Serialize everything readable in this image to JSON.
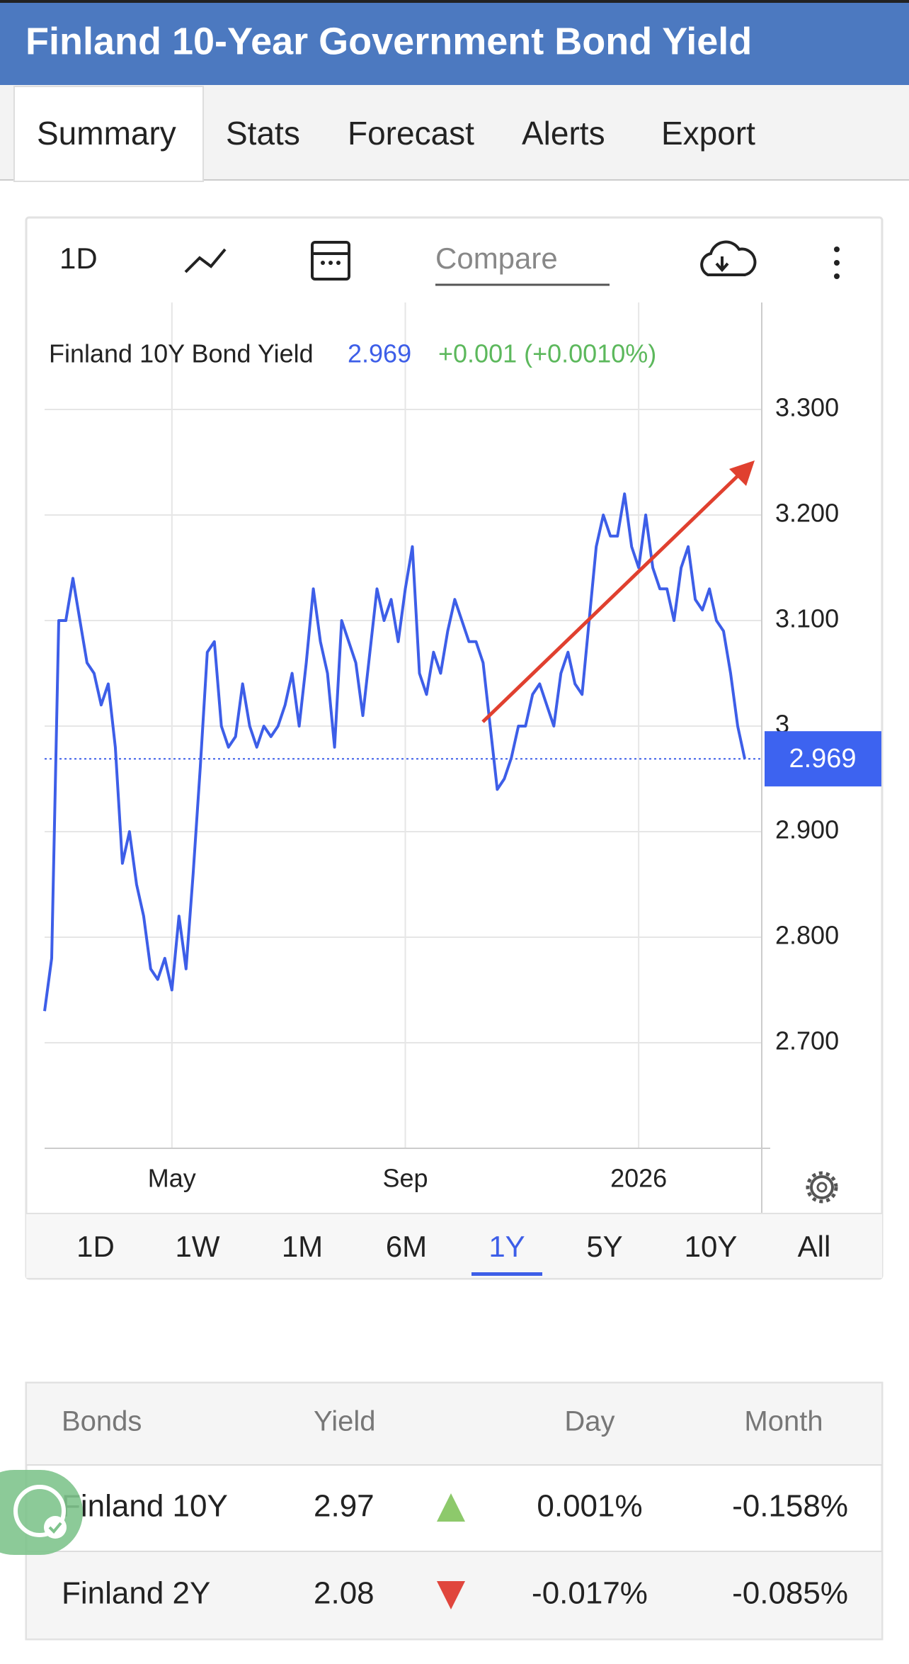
{
  "header": {
    "title": "Finland 10-Year Government Bond Yield"
  },
  "tabs": [
    "Summary",
    "Stats",
    "Forecast",
    "Alerts",
    "Export"
  ],
  "toolbar": {
    "interval": "1D",
    "compare": "Compare"
  },
  "chart_data": {
    "type": "line",
    "series_name": "Finland 10Y Bond Yield",
    "last_value": 2.969,
    "change_label": "+0.001 (+0.0010%)",
    "color": "#3d5ee8",
    "categories": [
      null,
      null,
      null,
      null,
      null,
      null,
      null,
      null,
      null,
      null,
      null,
      null,
      null,
      null,
      null,
      null,
      null,
      null,
      "May",
      null,
      null,
      null,
      null,
      null,
      null,
      null,
      null,
      null,
      null,
      null,
      null,
      null,
      null,
      null,
      null,
      null,
      null,
      null,
      null,
      null,
      null,
      null,
      null,
      null,
      null,
      null,
      null,
      null,
      null,
      null,
      null,
      "Sep",
      null,
      null,
      null,
      null,
      null,
      null,
      null,
      null,
      null,
      null,
      null,
      null,
      null,
      null,
      null,
      null,
      null,
      null,
      null,
      null,
      null,
      null,
      null,
      null,
      null,
      null,
      null,
      null,
      null,
      null,
      null,
      null,
      "2026",
      null,
      null,
      null,
      null,
      null,
      null,
      null,
      null,
      null,
      null,
      null,
      null,
      null,
      null,
      null
    ],
    "values": [
      2.73,
      2.78,
      3.1,
      3.1,
      3.14,
      3.1,
      3.06,
      3.05,
      3.02,
      3.04,
      2.98,
      2.87,
      2.9,
      2.85,
      2.82,
      2.77,
      2.76,
      2.78,
      2.75,
      2.82,
      2.77,
      2.86,
      2.96,
      3.07,
      3.08,
      3.0,
      2.98,
      2.99,
      3.04,
      3.0,
      2.98,
      3.0,
      2.99,
      3.0,
      3.02,
      3.05,
      3.0,
      3.06,
      3.13,
      3.08,
      3.05,
      2.98,
      3.1,
      3.08,
      3.06,
      3.01,
      3.07,
      3.13,
      3.1,
      3.12,
      3.08,
      3.13,
      3.17,
      3.05,
      3.03,
      3.07,
      3.05,
      3.09,
      3.12,
      3.1,
      3.08,
      3.08,
      3.06,
      3.0,
      2.94,
      2.95,
      2.97,
      3.0,
      3.0,
      3.03,
      3.04,
      3.02,
      3.0,
      3.05,
      3.07,
      3.04,
      3.03,
      3.1,
      3.17,
      3.2,
      3.18,
      3.18,
      3.22,
      3.17,
      3.15,
      3.2,
      3.15,
      3.13,
      3.13,
      3.1,
      3.15,
      3.17,
      3.12,
      3.11,
      3.13,
      3.1,
      3.09,
      3.05,
      3.0,
      2.969
    ],
    "ylim": [
      2.6,
      3.4
    ],
    "yticks": [
      {
        "value": 2.7,
        "label": "2.700"
      },
      {
        "value": 2.8,
        "label": "2.800"
      },
      {
        "value": 2.9,
        "label": "2.900"
      },
      3,
      {
        "value": 3.1,
        "label": "3.100"
      },
      {
        "value": 3.2,
        "label": "3.200"
      },
      {
        "value": 3.3,
        "label": "3.300"
      }
    ],
    "grid": true
  },
  "ranges": {
    "options": [
      "1D",
      "1W",
      "1M",
      "6M",
      "1Y",
      "5Y",
      "10Y",
      "All"
    ],
    "active": "1Y"
  },
  "table": {
    "headers": [
      "Bonds",
      "Yield",
      "Day",
      "Month"
    ],
    "rows": [
      [
        "Finland 10Y",
        "2.97",
        "0.001%",
        "-0.158%"
      ],
      [
        "Finland 2Y",
        "2.08",
        "-0.017%",
        "-0.085%"
      ]
    ]
  }
}
